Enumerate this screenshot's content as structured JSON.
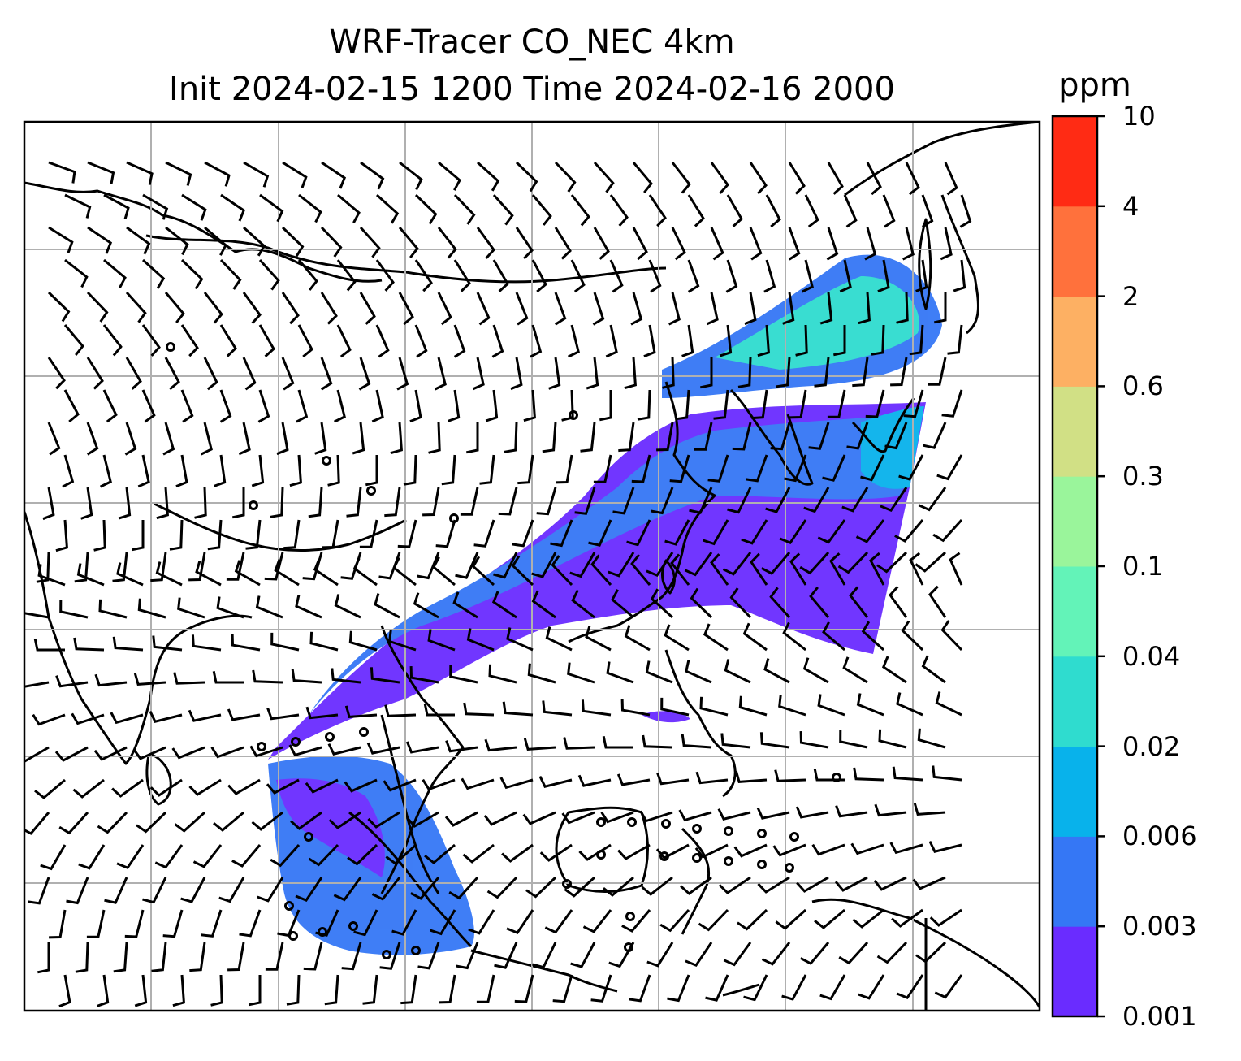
{
  "title": {
    "line1": "WRF-Tracer CO_NEC 4km",
    "line2": "Init 2024-02-15 1200 Time 2024-02-16 2000"
  },
  "colorbar": {
    "units": "ppm",
    "levels": [
      "0.001",
      "0.003",
      "0.006",
      "0.02",
      "0.04",
      "0.1",
      "0.3",
      "0.6",
      "2",
      "4",
      "10"
    ],
    "colors": [
      "#6a2cff",
      "#3577f5",
      "#08b2eb",
      "#2fdccf",
      "#63f3b8",
      "#9af59b",
      "#d1e085",
      "#fdb063",
      "#ff713c",
      "#ff2b14"
    ]
  },
  "map": {
    "gridlines": true,
    "ocean_color": "#ffffff",
    "coastline_color": "#000000",
    "gridline_color": "#b0b0b0"
  }
}
